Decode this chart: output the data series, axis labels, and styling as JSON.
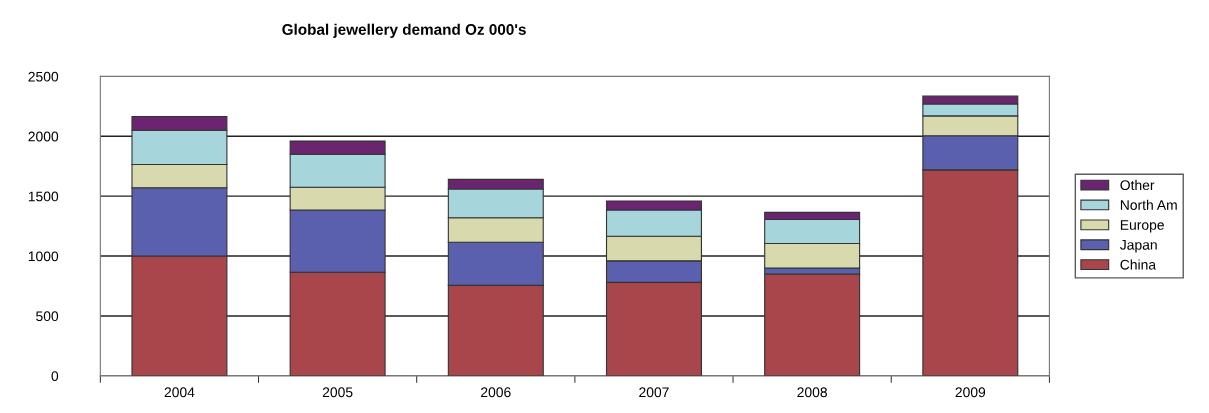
{
  "chart_data": {
    "type": "bar",
    "title": "Global jewellery demand Oz 000's",
    "stacked": true,
    "categories": [
      "2004",
      "2005",
      "2006",
      "2007",
      "2008",
      "2009"
    ],
    "series": [
      {
        "name": "China",
        "color": "#a8464b",
        "values": [
          1000,
          865,
          755,
          780,
          850,
          1720
        ]
      },
      {
        "name": "Japan",
        "color": "#5a60ad",
        "values": [
          570,
          520,
          360,
          180,
          50,
          285
        ]
      },
      {
        "name": "Europe",
        "color": "#d9d9ae",
        "values": [
          195,
          190,
          205,
          205,
          205,
          165
        ]
      },
      {
        "name": "North Am",
        "color": "#a6d5db",
        "values": [
          285,
          275,
          240,
          220,
          200,
          100
        ]
      },
      {
        "name": "Other",
        "color": "#6b2570",
        "values": [
          115,
          110,
          80,
          75,
          60,
          65
        ]
      }
    ],
    "ylim": [
      0,
      2500
    ],
    "yticks": [
      0,
      500,
      1000,
      1500,
      2000,
      2500
    ],
    "grid": "y",
    "legend": "right"
  }
}
